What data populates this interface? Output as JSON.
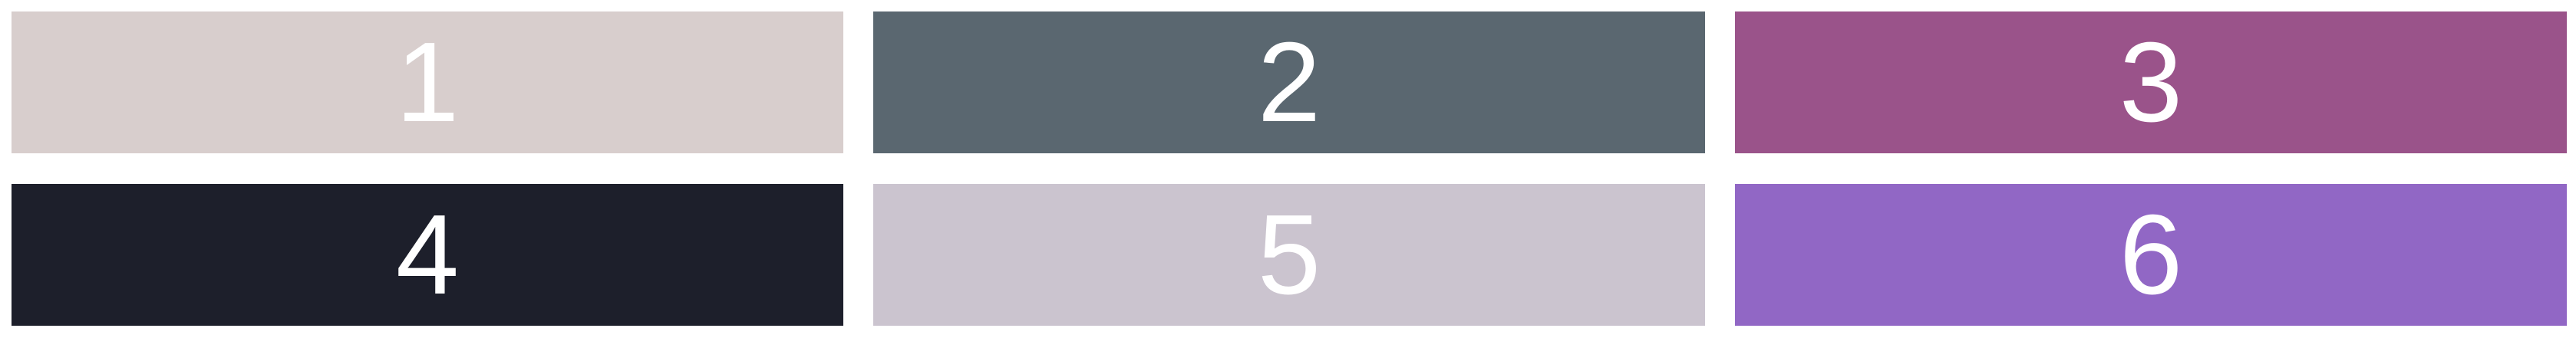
{
  "swatches": [
    {
      "label": "1",
      "color": "#d8cecd"
    },
    {
      "label": "2",
      "color": "#5a6770"
    },
    {
      "label": "3",
      "color": "#9a538a"
    },
    {
      "label": "4",
      "color": "#1d1f2b"
    },
    {
      "label": "5",
      "color": "#cbc4cf"
    },
    {
      "label": "6",
      "color": "#9167c5"
    }
  ]
}
